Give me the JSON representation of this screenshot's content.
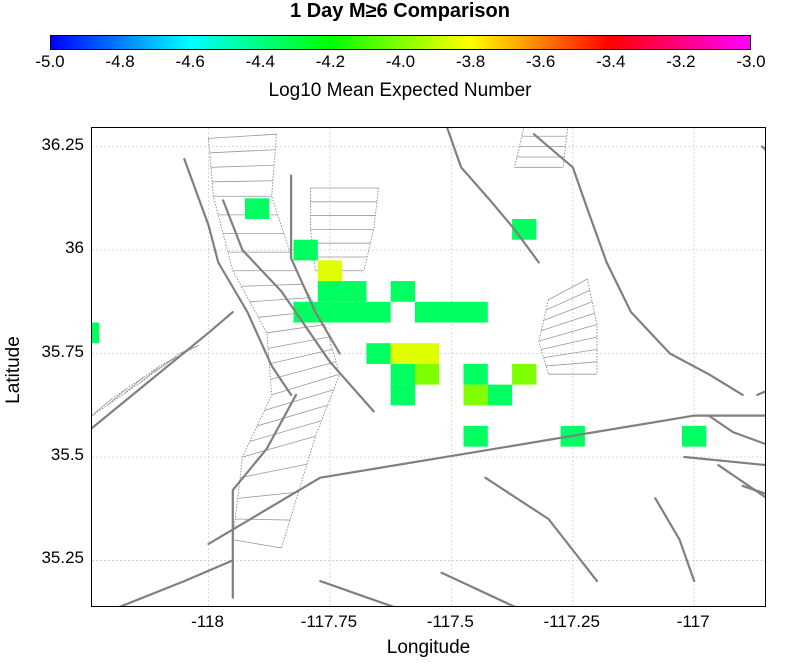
{
  "title": "1 Day M≥6 Comparison",
  "colorbar": {
    "label": "Log10 Mean Expected Number",
    "min": -5.0,
    "max": -3.0,
    "ticks": [
      "-5.0",
      "-4.8",
      "-4.6",
      "-4.4",
      "-4.2",
      "-4.0",
      "-3.8",
      "-3.6",
      "-3.4",
      "-3.2",
      "-3.0"
    ],
    "tick_values": [
      -5.0,
      -4.8,
      -4.6,
      -4.4,
      -4.2,
      -4.0,
      -3.8,
      -3.6,
      -3.4,
      -3.2,
      -3.0
    ],
    "colors": [
      "#0000ff",
      "#00ffff",
      "#00ff00",
      "#ffff00",
      "#ff0000",
      "#ff00ff"
    ]
  },
  "chart_data": {
    "type": "heatmap",
    "title": "1 Day M≥6 Comparison",
    "xlabel": "Longitude",
    "ylabel": "Latitude",
    "xlim": [
      -118.24,
      -116.85
    ],
    "ylim": [
      35.135,
      36.295
    ],
    "x_ticks": [
      -118,
      -117.75,
      -117.5,
      -117.25,
      -117
    ],
    "x_tick_labels": [
      "-118",
      "-117.75",
      "-117.5",
      "-117.25",
      "-117"
    ],
    "y_ticks": [
      35.25,
      35.5,
      35.75,
      36,
      36.25
    ],
    "y_tick_labels": [
      "35.25",
      "35.5",
      "35.75",
      "36",
      "36.25"
    ],
    "grid": true,
    "cell_size_deg": 0.05,
    "cells": [
      {
        "lon": -117.9,
        "lat": 36.1,
        "value": -4.35
      },
      {
        "lon": -117.8,
        "lat": 36.0,
        "value": -4.35
      },
      {
        "lon": -117.35,
        "lat": 36.05,
        "value": -4.35
      },
      {
        "lon": -117.75,
        "lat": 35.95,
        "value": -3.85
      },
      {
        "lon": -118.25,
        "lat": 35.8,
        "value": -4.35
      },
      {
        "lon": -117.75,
        "lat": 35.9,
        "value": -4.35
      },
      {
        "lon": -117.7,
        "lat": 35.9,
        "value": -4.35
      },
      {
        "lon": -117.6,
        "lat": 35.9,
        "value": -4.35
      },
      {
        "lon": -117.8,
        "lat": 35.85,
        "value": -4.35
      },
      {
        "lon": -117.75,
        "lat": 35.85,
        "value": -4.35
      },
      {
        "lon": -117.7,
        "lat": 35.85,
        "value": -4.35
      },
      {
        "lon": -117.65,
        "lat": 35.85,
        "value": -4.35
      },
      {
        "lon": -117.55,
        "lat": 35.85,
        "value": -4.35
      },
      {
        "lon": -117.5,
        "lat": 35.85,
        "value": -4.35
      },
      {
        "lon": -117.45,
        "lat": 35.85,
        "value": -4.35
      },
      {
        "lon": -117.65,
        "lat": 35.75,
        "value": -4.35
      },
      {
        "lon": -117.6,
        "lat": 35.75,
        "value": -3.85
      },
      {
        "lon": -117.55,
        "lat": 35.75,
        "value": -3.85
      },
      {
        "lon": -117.6,
        "lat": 35.7,
        "value": -4.35
      },
      {
        "lon": -117.55,
        "lat": 35.7,
        "value": -4.0
      },
      {
        "lon": -117.45,
        "lat": 35.7,
        "value": -4.35
      },
      {
        "lon": -117.35,
        "lat": 35.7,
        "value": -4.0
      },
      {
        "lon": -117.6,
        "lat": 35.65,
        "value": -4.35
      },
      {
        "lon": -117.45,
        "lat": 35.65,
        "value": -4.0
      },
      {
        "lon": -117.4,
        "lat": 35.65,
        "value": -4.35
      },
      {
        "lon": -117.45,
        "lat": 35.55,
        "value": -4.35
      },
      {
        "lon": -117.25,
        "lat": 35.55,
        "value": -4.35
      },
      {
        "lon": -117.0,
        "lat": 35.55,
        "value": -4.35
      }
    ],
    "faults": [
      [
        [
          -118.05,
          36.22
        ],
        [
          -118.0,
          36.06
        ],
        [
          -117.98,
          35.97
        ],
        [
          -117.92,
          35.85
        ],
        [
          -117.87,
          35.72
        ],
        [
          -117.83,
          35.65
        ]
      ],
      [
        [
          -117.97,
          36.12
        ],
        [
          -117.93,
          36.0
        ],
        [
          -117.85,
          35.9
        ],
        [
          -117.75,
          35.73
        ],
        [
          -117.66,
          35.61
        ]
      ],
      [
        [
          -117.83,
          36.18
        ],
        [
          -117.83,
          35.98
        ],
        [
          -117.78,
          35.85
        ],
        [
          -117.73,
          35.75
        ]
      ],
      [
        [
          -117.51,
          36.3
        ],
        [
          -117.48,
          36.2
        ],
        [
          -117.42,
          36.12
        ],
        [
          -117.37,
          36.05
        ],
        [
          -117.32,
          35.97
        ]
      ],
      [
        [
          -117.33,
          36.28
        ],
        [
          -117.25,
          36.2
        ],
        [
          -117.22,
          36.1
        ],
        [
          -117.18,
          35.97
        ],
        [
          -117.13,
          35.85
        ],
        [
          -117.05,
          35.75
        ],
        [
          -116.97,
          35.7
        ],
        [
          -116.9,
          35.65
        ]
      ],
      [
        [
          -118.24,
          35.57
        ],
        [
          -118.0,
          35.8
        ],
        [
          -117.95,
          35.85
        ]
      ],
      [
        [
          -117.95,
          35.16
        ],
        [
          -117.95,
          35.42
        ],
        [
          -117.88,
          35.52
        ],
        [
          -117.82,
          35.65
        ]
      ],
      [
        [
          -118.0,
          35.29
        ],
        [
          -117.77,
          35.45
        ],
        [
          -117.46,
          35.51
        ],
        [
          -117.0,
          35.6
        ],
        [
          -116.85,
          35.6
        ]
      ],
      [
        [
          -118.2,
          35.13
        ],
        [
          -118.05,
          35.2
        ],
        [
          -117.95,
          35.25
        ]
      ],
      [
        [
          -117.77,
          35.2
        ],
        [
          -117.6,
          35.13
        ]
      ],
      [
        [
          -117.52,
          35.22
        ],
        [
          -117.3,
          35.1
        ]
      ],
      [
        [
          -117.43,
          35.45
        ],
        [
          -117.3,
          35.35
        ],
        [
          -117.2,
          35.2
        ]
      ],
      [
        [
          -117.08,
          35.4
        ],
        [
          -117.03,
          35.3
        ],
        [
          -117.0,
          35.2
        ]
      ],
      [
        [
          -116.95,
          35.48
        ],
        [
          -116.85,
          35.4
        ]
      ],
      [
        [
          -116.97,
          35.6
        ],
        [
          -116.92,
          35.56
        ],
        [
          -116.85,
          35.53
        ]
      ],
      [
        [
          -117.02,
          35.5
        ],
        [
          -116.85,
          35.48
        ]
      ],
      [
        [
          -116.9,
          35.43
        ],
        [
          -116.85,
          35.41
        ]
      ],
      [
        [
          -116.87,
          35.65
        ],
        [
          -116.85,
          35.66
        ]
      ],
      [
        [
          -116.86,
          36.25
        ],
        [
          -116.85,
          36.24
        ]
      ]
    ]
  }
}
